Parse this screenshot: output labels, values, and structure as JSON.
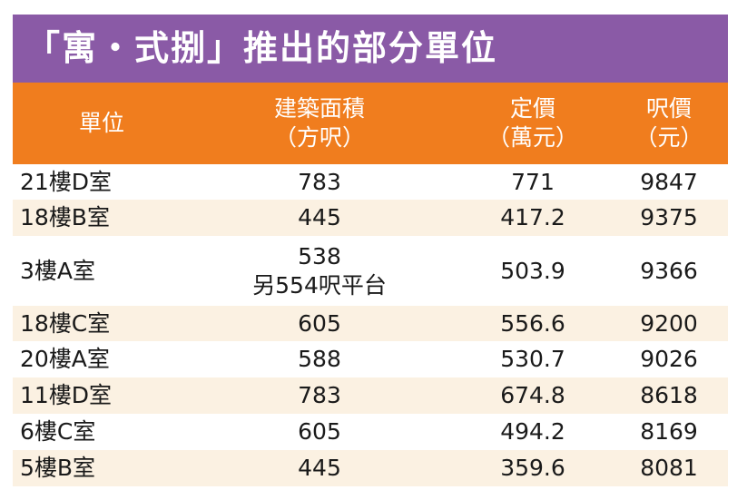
{
  "title": "「寓・式捌」推出的部分單位",
  "header": {
    "unit": "單位",
    "area_line1": "建築面積",
    "area_line2": "（方呎）",
    "price_line1": "定價",
    "price_line2": "（萬元）",
    "psf_line1": "呎價",
    "psf_line2": "（元）"
  },
  "rows": [
    {
      "unit": "21樓D室",
      "area": "783",
      "area_note": "",
      "price": "771",
      "psf": "9847"
    },
    {
      "unit": "18樓B室",
      "area": "445",
      "area_note": "",
      "price": "417.2",
      "psf": "9375"
    },
    {
      "unit": "3樓A室",
      "area": "538",
      "area_note": "另554呎平台",
      "price": "503.9",
      "psf": "9366"
    },
    {
      "unit": "18樓C室",
      "area": "605",
      "area_note": "",
      "price": "556.6",
      "psf": "9200"
    },
    {
      "unit": "20樓A室",
      "area": "588",
      "area_note": "",
      "price": "530.7",
      "psf": "9026"
    },
    {
      "unit": "11樓D室",
      "area": "783",
      "area_note": "",
      "price": "674.8",
      "psf": "8618"
    },
    {
      "unit": "6樓C室",
      "area": "605",
      "area_note": "",
      "price": "494.2",
      "psf": "8169"
    },
    {
      "unit": "5樓B室",
      "area": "445",
      "area_note": "",
      "price": "359.6",
      "psf": "8081"
    }
  ]
}
